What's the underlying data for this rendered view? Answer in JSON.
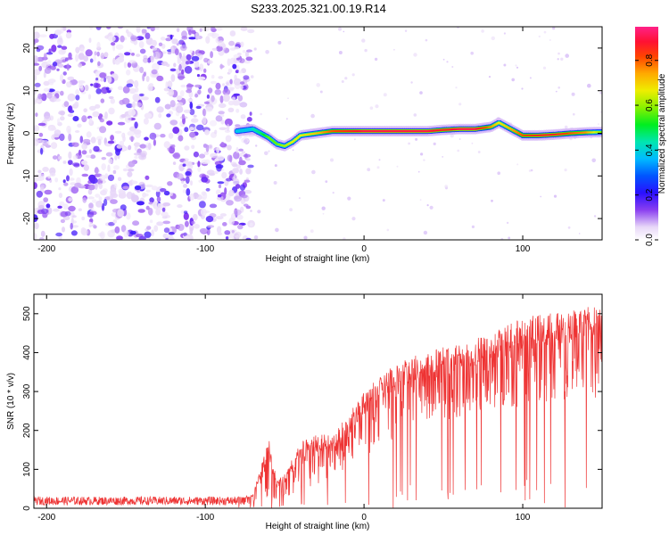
{
  "title": "S233.2025.321.00.19.R14",
  "chart_data": [
    {
      "type": "heatmap",
      "xlabel": "Height of straight line (km)",
      "ylabel": "Frequency (Hz)",
      "xlim": [
        -208,
        150
      ],
      "ylim": [
        -25,
        25
      ],
      "x_ticks": [
        -200,
        -100,
        0,
        100
      ],
      "y_ticks": [
        -20,
        -10,
        0,
        10,
        20
      ],
      "grid": false,
      "colorbar": {
        "label": "Normalized spectral amplitude",
        "ticks": [
          0.0,
          0.2,
          0.4,
          0.6,
          0.8
        ],
        "range": [
          0,
          0.95
        ]
      },
      "noise_region_x": [
        -208,
        -75
      ],
      "signal_ridge": {
        "x": [
          -80,
          -70,
          -65,
          -60,
          -55,
          -50,
          -45,
          -40,
          -30,
          -20,
          0,
          20,
          40,
          50,
          60,
          70,
          80,
          85,
          90,
          95,
          100,
          110,
          120,
          130,
          140,
          150
        ],
        "freq": [
          0.5,
          1,
          0,
          -1,
          -2.5,
          -3,
          -2,
          -0.5,
          0,
          0.5,
          0.5,
          0.5,
          0.5,
          0.8,
          1,
          1,
          1.5,
          2.5,
          1.5,
          0.5,
          -0.5,
          -0.5,
          -0.3,
          0,
          0.2,
          0.3
        ],
        "amplitude": [
          0.35,
          0.45,
          0.5,
          0.6,
          0.6,
          0.65,
          0.7,
          0.7,
          0.75,
          0.85,
          0.95,
          0.95,
          0.95,
          0.9,
          0.95,
          0.95,
          0.8,
          0.7,
          0.75,
          0.8,
          0.85,
          0.9,
          0.9,
          0.85,
          0.8,
          0.6
        ]
      }
    },
    {
      "type": "line",
      "xlabel": "Height of straight line (km)",
      "ylabel": "SNR (10 * v/v)",
      "xlim": [
        -208,
        150
      ],
      "ylim": [
        0,
        550
      ],
      "x_ticks": [
        -200,
        -100,
        0,
        100
      ],
      "y_ticks": [
        0,
        100,
        200,
        300,
        400,
        500
      ],
      "grid": false,
      "series": [
        {
          "color": "#ee3333",
          "envelope": {
            "x": [
              -208,
              -80,
              -70,
              -60,
              -55,
              -50,
              -40,
              -30,
              -20,
              -10,
              0,
              10,
              20,
              30,
              40,
              60,
              80,
              100,
              120,
              150
            ],
            "upper": [
              30,
              30,
              35,
              180,
              70,
              90,
              170,
              190,
              190,
              240,
              300,
              340,
              370,
              390,
              410,
              420,
              450,
              490,
              510,
              520
            ],
            "lower": [
              8,
              8,
              10,
              30,
              20,
              25,
              40,
              60,
              80,
              100,
              130,
              160,
              180,
              200,
              220,
              230,
              250,
              260,
              270,
              280
            ]
          }
        }
      ]
    }
  ]
}
